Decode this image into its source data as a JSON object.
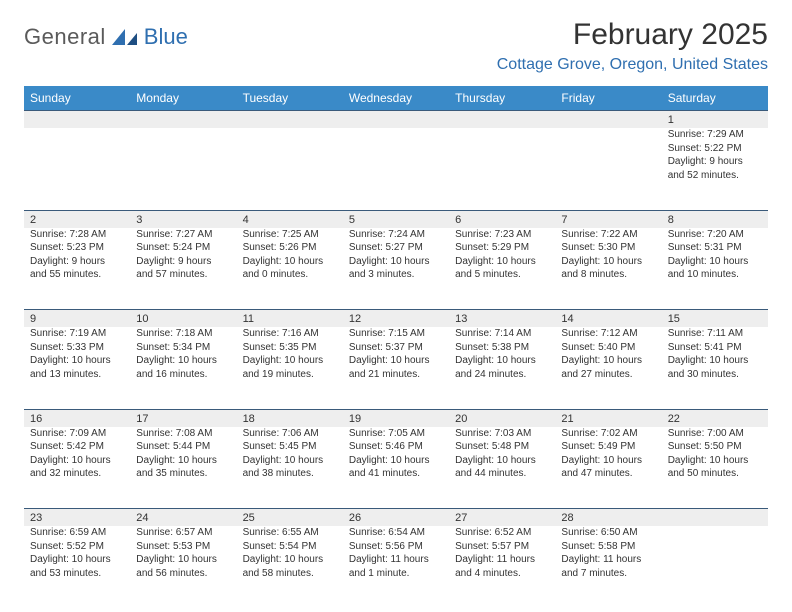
{
  "logo": {
    "general": "General",
    "blue": "Blue"
  },
  "header": {
    "title": "February 2025",
    "location": "Cottage Grove, Oregon, United States"
  },
  "colors": {
    "header_bg": "#3a8ac8",
    "header_text": "#ffffff",
    "daynum_bg": "#eeeeee",
    "rule": "#3a5a7a",
    "logo_blue": "#2f6fb0",
    "text": "#333333"
  },
  "day_labels": [
    "Sunday",
    "Monday",
    "Tuesday",
    "Wednesday",
    "Thursday",
    "Friday",
    "Saturday"
  ],
  "weeks": [
    {
      "nums": [
        "",
        "",
        "",
        "",
        "",
        "",
        "1"
      ],
      "cells": [
        "",
        "",
        "",
        "",
        "",
        "",
        "Sunrise: 7:29 AM\nSunset: 5:22 PM\nDaylight: 9 hours and 52 minutes."
      ]
    },
    {
      "nums": [
        "2",
        "3",
        "4",
        "5",
        "6",
        "7",
        "8"
      ],
      "cells": [
        "Sunrise: 7:28 AM\nSunset: 5:23 PM\nDaylight: 9 hours and 55 minutes.",
        "Sunrise: 7:27 AM\nSunset: 5:24 PM\nDaylight: 9 hours and 57 minutes.",
        "Sunrise: 7:25 AM\nSunset: 5:26 PM\nDaylight: 10 hours and 0 minutes.",
        "Sunrise: 7:24 AM\nSunset: 5:27 PM\nDaylight: 10 hours and 3 minutes.",
        "Sunrise: 7:23 AM\nSunset: 5:29 PM\nDaylight: 10 hours and 5 minutes.",
        "Sunrise: 7:22 AM\nSunset: 5:30 PM\nDaylight: 10 hours and 8 minutes.",
        "Sunrise: 7:20 AM\nSunset: 5:31 PM\nDaylight: 10 hours and 10 minutes."
      ]
    },
    {
      "nums": [
        "9",
        "10",
        "11",
        "12",
        "13",
        "14",
        "15"
      ],
      "cells": [
        "Sunrise: 7:19 AM\nSunset: 5:33 PM\nDaylight: 10 hours and 13 minutes.",
        "Sunrise: 7:18 AM\nSunset: 5:34 PM\nDaylight: 10 hours and 16 minutes.",
        "Sunrise: 7:16 AM\nSunset: 5:35 PM\nDaylight: 10 hours and 19 minutes.",
        "Sunrise: 7:15 AM\nSunset: 5:37 PM\nDaylight: 10 hours and 21 minutes.",
        "Sunrise: 7:14 AM\nSunset: 5:38 PM\nDaylight: 10 hours and 24 minutes.",
        "Sunrise: 7:12 AM\nSunset: 5:40 PM\nDaylight: 10 hours and 27 minutes.",
        "Sunrise: 7:11 AM\nSunset: 5:41 PM\nDaylight: 10 hours and 30 minutes."
      ]
    },
    {
      "nums": [
        "16",
        "17",
        "18",
        "19",
        "20",
        "21",
        "22"
      ],
      "cells": [
        "Sunrise: 7:09 AM\nSunset: 5:42 PM\nDaylight: 10 hours and 32 minutes.",
        "Sunrise: 7:08 AM\nSunset: 5:44 PM\nDaylight: 10 hours and 35 minutes.",
        "Sunrise: 7:06 AM\nSunset: 5:45 PM\nDaylight: 10 hours and 38 minutes.",
        "Sunrise: 7:05 AM\nSunset: 5:46 PM\nDaylight: 10 hours and 41 minutes.",
        "Sunrise: 7:03 AM\nSunset: 5:48 PM\nDaylight: 10 hours and 44 minutes.",
        "Sunrise: 7:02 AM\nSunset: 5:49 PM\nDaylight: 10 hours and 47 minutes.",
        "Sunrise: 7:00 AM\nSunset: 5:50 PM\nDaylight: 10 hours and 50 minutes."
      ]
    },
    {
      "nums": [
        "23",
        "24",
        "25",
        "26",
        "27",
        "28",
        ""
      ],
      "cells": [
        "Sunrise: 6:59 AM\nSunset: 5:52 PM\nDaylight: 10 hours and 53 minutes.",
        "Sunrise: 6:57 AM\nSunset: 5:53 PM\nDaylight: 10 hours and 56 minutes.",
        "Sunrise: 6:55 AM\nSunset: 5:54 PM\nDaylight: 10 hours and 58 minutes.",
        "Sunrise: 6:54 AM\nSunset: 5:56 PM\nDaylight: 11 hours and 1 minute.",
        "Sunrise: 6:52 AM\nSunset: 5:57 PM\nDaylight: 11 hours and 4 minutes.",
        "Sunrise: 6:50 AM\nSunset: 5:58 PM\nDaylight: 11 hours and 7 minutes.",
        ""
      ]
    }
  ]
}
